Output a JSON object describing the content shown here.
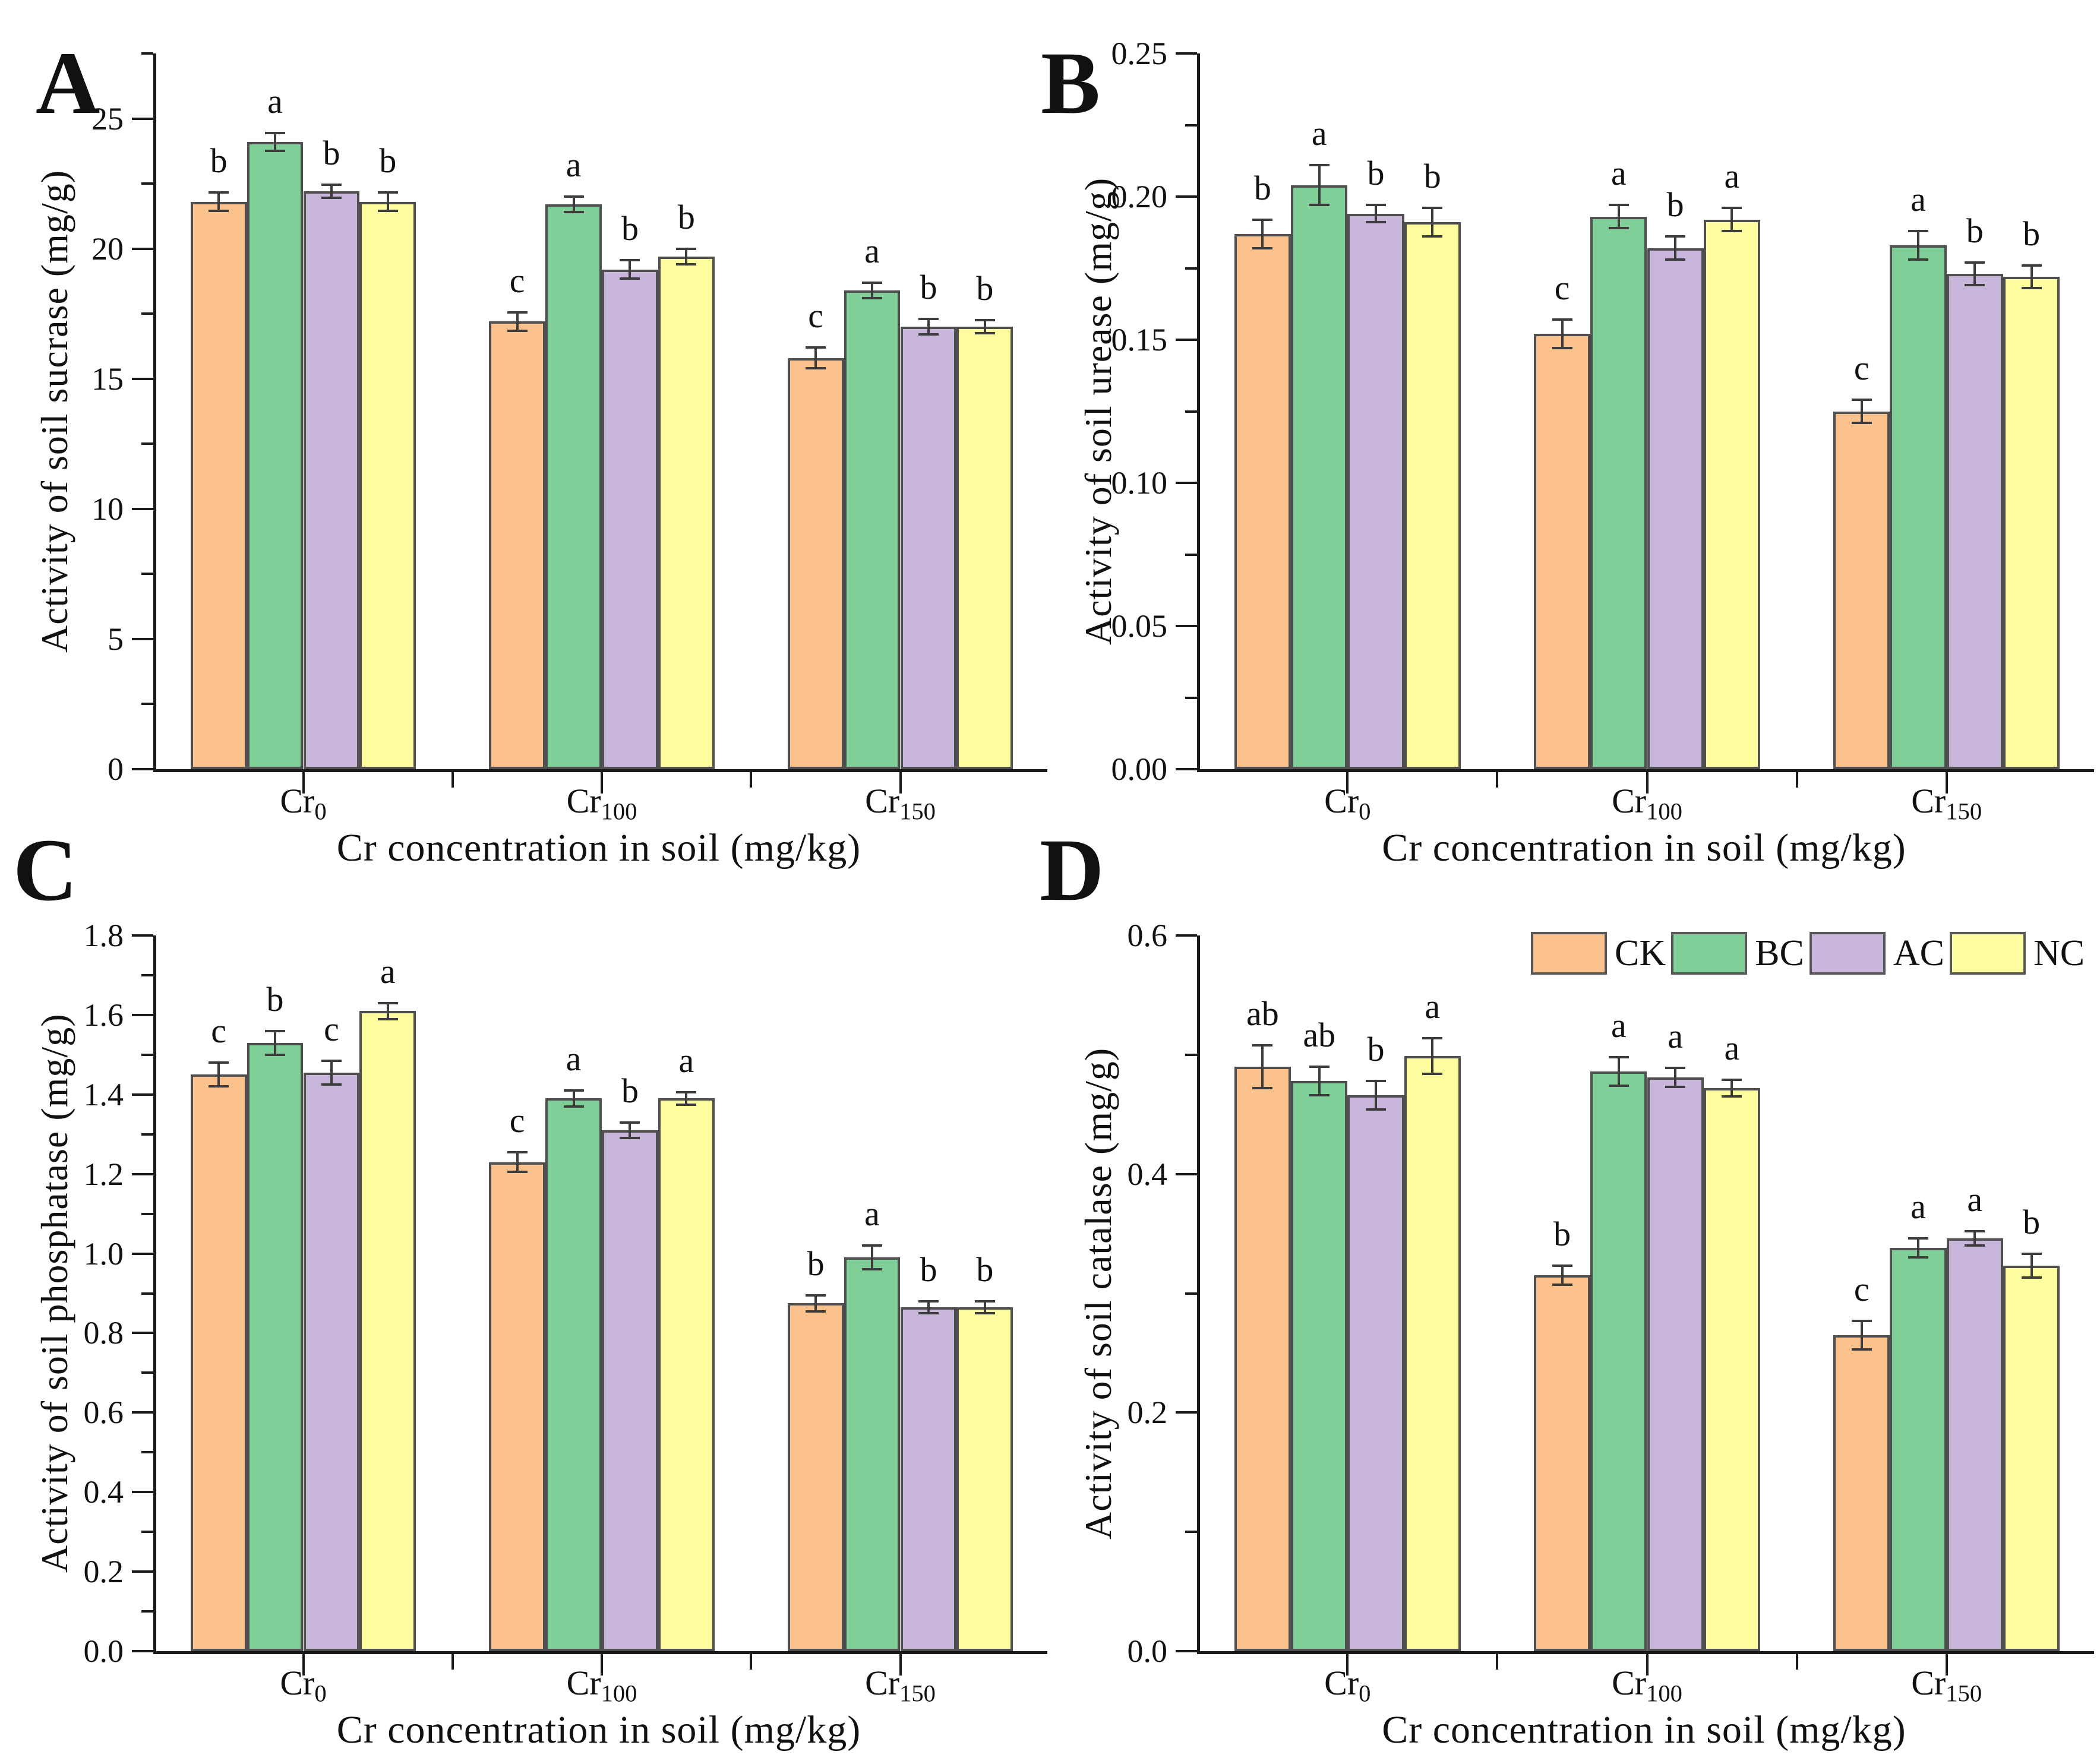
{
  "figure_style": {
    "background": "#ffffff",
    "axis_color": "#1a1a1a",
    "bar_border_color": "#4f4f4f",
    "error_bar_color": "#3c3c3c",
    "series_colors": {
      "CK": "#FBC28D",
      "BC": "#80CE98",
      "AC": "#C9B7DB",
      "NC": "#FDFD9F"
    }
  },
  "legend": {
    "location": "top-right of panel D",
    "items": [
      {
        "label": "CK",
        "color": "#FBC28D"
      },
      {
        "label": "BC",
        "color": "#80CE98"
      },
      {
        "label": "AC",
        "color": "#C9B7DB"
      },
      {
        "label": "NC",
        "color": "#FDFD9F"
      }
    ]
  },
  "chart_data": [
    {
      "panel_label": "A",
      "type": "bar",
      "ylabel": "Activity of soil sucrase (mg/g)",
      "xlabel": "Cr concentration in soil (mg/kg)",
      "categories": [
        "Cr0",
        "Cr100",
        "Cr150"
      ],
      "category_parts": [
        {
          "base": "Cr",
          "sub": "0"
        },
        {
          "base": "Cr",
          "sub": "100"
        },
        {
          "base": "Cr",
          "sub": "150"
        }
      ],
      "ylim": [
        0,
        27.5
      ],
      "yticks": {
        "major": 5,
        "minor": 2.5,
        "decimals": 0,
        "top_label": 25
      },
      "grid": false,
      "legend_here": false,
      "series": [
        {
          "name": "CK",
          "color": "#FBC28D",
          "values": [
            21.8,
            17.2,
            15.8
          ],
          "errors": [
            0.35,
            0.35,
            0.4
          ],
          "sig_letters": [
            "b",
            "c",
            "c"
          ]
        },
        {
          "name": "BC",
          "color": "#80CE98",
          "values": [
            24.1,
            21.7,
            18.4
          ],
          "errors": [
            0.35,
            0.3,
            0.3
          ],
          "sig_letters": [
            "a",
            "a",
            "a"
          ]
        },
        {
          "name": "AC",
          "color": "#C9B7DB",
          "values": [
            22.2,
            19.2,
            17.0
          ],
          "errors": [
            0.25,
            0.35,
            0.3
          ],
          "sig_letters": [
            "b",
            "b",
            "b"
          ]
        },
        {
          "name": "NC",
          "color": "#FDFD9F",
          "values": [
            21.8,
            19.7,
            17.0
          ],
          "errors": [
            0.35,
            0.3,
            0.25
          ],
          "sig_letters": [
            "b",
            "b",
            "b"
          ]
        }
      ]
    },
    {
      "panel_label": "B",
      "type": "bar",
      "ylabel": "Activity of soil urease (mg/g)",
      "xlabel": "Cr concentration in soil (mg/kg)",
      "categories": [
        "Cr0",
        "Cr100",
        "Cr150"
      ],
      "category_parts": [
        {
          "base": "Cr",
          "sub": "0"
        },
        {
          "base": "Cr",
          "sub": "100"
        },
        {
          "base": "Cr",
          "sub": "150"
        }
      ],
      "ylim": [
        0,
        0.25
      ],
      "yticks": {
        "major": 0.05,
        "minor": 0.025,
        "decimals": 2,
        "top_label": 0.25
      },
      "grid": false,
      "legend_here": false,
      "series": [
        {
          "name": "CK",
          "color": "#FBC28D",
          "values": [
            0.187,
            0.152,
            0.125
          ],
          "errors": [
            0.005,
            0.005,
            0.004
          ],
          "sig_letters": [
            "b",
            "c",
            "c"
          ]
        },
        {
          "name": "BC",
          "color": "#80CE98",
          "values": [
            0.204,
            0.193,
            0.183
          ],
          "errors": [
            0.007,
            0.004,
            0.005
          ],
          "sig_letters": [
            "a",
            "a",
            "a"
          ]
        },
        {
          "name": "AC",
          "color": "#C9B7DB",
          "values": [
            0.194,
            0.182,
            0.173
          ],
          "errors": [
            0.003,
            0.004,
            0.004
          ],
          "sig_letters": [
            "b",
            "b",
            "b"
          ]
        },
        {
          "name": "NC",
          "color": "#FDFD9F",
          "values": [
            0.191,
            0.192,
            0.172
          ],
          "errors": [
            0.005,
            0.004,
            0.004
          ],
          "sig_letters": [
            "b",
            "a",
            "b"
          ]
        }
      ]
    },
    {
      "panel_label": "C",
      "type": "bar",
      "ylabel": "Activity of soil phosphatase (mg/g)",
      "xlabel": "Cr concentration in soil (mg/kg)",
      "categories": [
        "Cr0",
        "Cr100",
        "Cr150"
      ],
      "category_parts": [
        {
          "base": "Cr",
          "sub": "0"
        },
        {
          "base": "Cr",
          "sub": "100"
        },
        {
          "base": "Cr",
          "sub": "150"
        }
      ],
      "ylim": [
        0,
        1.8
      ],
      "yticks": {
        "major": 0.2,
        "minor": 0.1,
        "decimals": 1,
        "top_label": 1.8
      },
      "grid": false,
      "legend_here": false,
      "series": [
        {
          "name": "CK",
          "color": "#FBC28D",
          "values": [
            1.45,
            1.23,
            0.875
          ],
          "errors": [
            0.03,
            0.025,
            0.02
          ],
          "sig_letters": [
            "c",
            "c",
            "b"
          ]
        },
        {
          "name": "BC",
          "color": "#80CE98",
          "values": [
            1.53,
            1.39,
            0.99
          ],
          "errors": [
            0.03,
            0.02,
            0.03
          ],
          "sig_letters": [
            "b",
            "a",
            "a"
          ]
        },
        {
          "name": "AC",
          "color": "#C9B7DB",
          "values": [
            1.455,
            1.31,
            0.865
          ],
          "errors": [
            0.03,
            0.02,
            0.015
          ],
          "sig_letters": [
            "c",
            "b",
            "b"
          ]
        },
        {
          "name": "NC",
          "color": "#FDFD9F",
          "values": [
            1.61,
            1.39,
            0.865
          ],
          "errors": [
            0.02,
            0.015,
            0.015
          ],
          "sig_letters": [
            "a",
            "a",
            "b"
          ]
        }
      ]
    },
    {
      "panel_label": "D",
      "type": "bar",
      "ylabel": "Activity of soil catalase (mg/g)",
      "xlabel": "Cr concentration in soil (mg/kg)",
      "categories": [
        "Cr0",
        "Cr100",
        "Cr150"
      ],
      "category_parts": [
        {
          "base": "Cr",
          "sub": "0"
        },
        {
          "base": "Cr",
          "sub": "100"
        },
        {
          "base": "Cr",
          "sub": "150"
        }
      ],
      "ylim": [
        0,
        0.6
      ],
      "yticks": {
        "major": 0.2,
        "minor": 0.1,
        "decimals": 1,
        "top_label": 0.6
      },
      "grid": false,
      "legend_here": true,
      "series": [
        {
          "name": "CK",
          "color": "#FBC28D",
          "values": [
            0.49,
            0.315,
            0.265
          ],
          "errors": [
            0.018,
            0.008,
            0.012
          ],
          "sig_letters": [
            "ab",
            "b",
            "c"
          ]
        },
        {
          "name": "BC",
          "color": "#80CE98",
          "values": [
            0.478,
            0.486,
            0.338
          ],
          "errors": [
            0.012,
            0.012,
            0.008
          ],
          "sig_letters": [
            "ab",
            "a",
            "a"
          ]
        },
        {
          "name": "AC",
          "color": "#C9B7DB",
          "values": [
            0.466,
            0.481,
            0.346
          ],
          "errors": [
            0.012,
            0.008,
            0.006
          ],
          "sig_letters": [
            "b",
            "a",
            "a"
          ]
        },
        {
          "name": "NC",
          "color": "#FDFD9F",
          "values": [
            0.499,
            0.472,
            0.323
          ],
          "errors": [
            0.015,
            0.007,
            0.01
          ],
          "sig_letters": [
            "a",
            "a",
            "b"
          ]
        }
      ]
    }
  ]
}
